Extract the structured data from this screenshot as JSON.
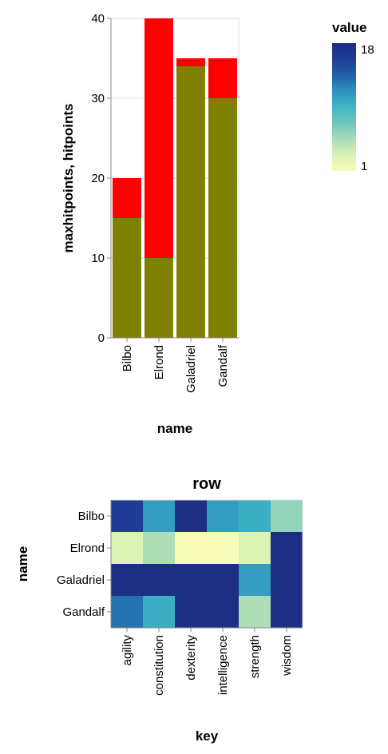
{
  "chart_data": [
    {
      "type": "bar",
      "stacking": "overlay",
      "categories": [
        "Bilbo",
        "Elrond",
        "Galadriel",
        "Gandalf"
      ],
      "series": [
        {
          "values": [
            20,
            40,
            35,
            35
          ],
          "color": "#ff0000"
        },
        {
          "values": [
            15,
            10,
            34,
            30
          ],
          "color": "#808000"
        }
      ],
      "xlabel": "name",
      "ylabel": "maxhitpoints, hitpoints",
      "ylim": [
        0,
        40
      ],
      "yticks": [
        "0",
        "10",
        "20",
        "30",
        "40"
      ],
      "grid": true
    },
    {
      "type": "heatmap",
      "title": "row",
      "x_categories": [
        "agility",
        "constitution",
        "dexterity",
        "intelligence",
        "strength",
        "wisdom"
      ],
      "y_categories": [
        "Bilbo",
        "Elrond",
        "Galadriel",
        "Gandalf"
      ],
      "values": [
        [
          16,
          11,
          18,
          11,
          10,
          6
        ],
        [
          3,
          5,
          1,
          1,
          3,
          18
        ],
        [
          18,
          18,
          18,
          18,
          11,
          18
        ],
        [
          13,
          10,
          18,
          18,
          5,
          18
        ]
      ],
      "xlabel": "key",
      "ylabel": "name",
      "legend": {
        "title": "value",
        "min": 1,
        "max": 18,
        "min_label": "1",
        "max_label": "18",
        "placement": "top-right"
      },
      "colorscale": [
        "#f7fcb9",
        "#dbf1b4",
        "#a8dcb8",
        "#6fc6bf",
        "#41b6c4",
        "#2c93bf",
        "#225ea8",
        "#1f3c96",
        "#1d2e83"
      ]
    }
  ]
}
